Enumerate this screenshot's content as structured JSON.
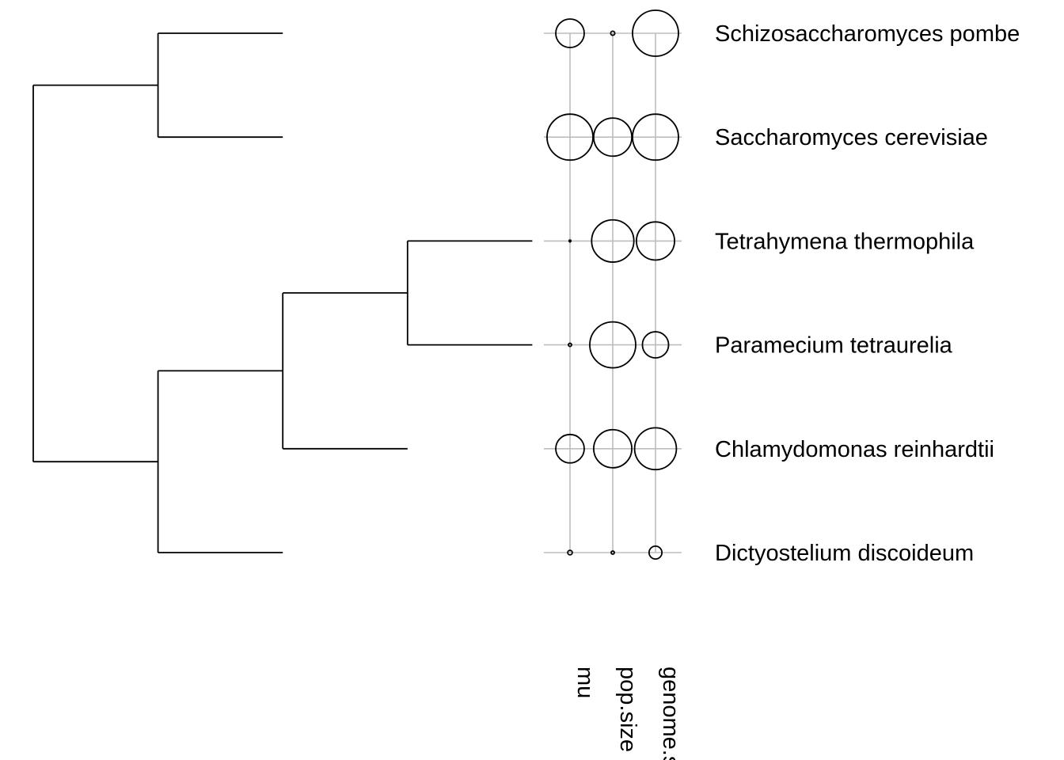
{
  "chart_data": {
    "type": "phylogeny-bubble",
    "taxa": [
      "Schizosaccharomyces pombe",
      "Saccharomyces cerevisiae",
      "Tetrahymena thermophila",
      "Paramecium tetraurelia",
      "Chlamydomonas reinhardtii",
      "Dictyostelium discoideum"
    ],
    "tree": {
      "children": [
        {
          "depth": 1,
          "children": [
            {
              "leaf": 0,
              "depth": 2
            },
            {
              "leaf": 1,
              "depth": 2
            }
          ]
        },
        {
          "depth": 1,
          "children": [
            {
              "depth": 2,
              "children": [
                {
                  "depth": 3,
                  "children": [
                    {
                      "leaf": 2,
                      "depth": 4
                    },
                    {
                      "leaf": 3,
                      "depth": 4
                    }
                  ]
                },
                {
                  "leaf": 4,
                  "depth": 3
                }
              ]
            },
            {
              "leaf": 5,
              "depth": 2
            }
          ]
        }
      ],
      "depth": 0
    },
    "traits": [
      {
        "name": "mu",
        "values": [
          0.62,
          1.0,
          0.03,
          0.07,
          0.62,
          0.1
        ]
      },
      {
        "name": "pop.size",
        "values": [
          0.09,
          0.83,
          0.92,
          1.0,
          0.83,
          0.07
        ]
      },
      {
        "name": "genome.size",
        "values": [
          1.0,
          1.0,
          0.83,
          0.57,
          0.91,
          0.28
        ]
      }
    ]
  }
}
